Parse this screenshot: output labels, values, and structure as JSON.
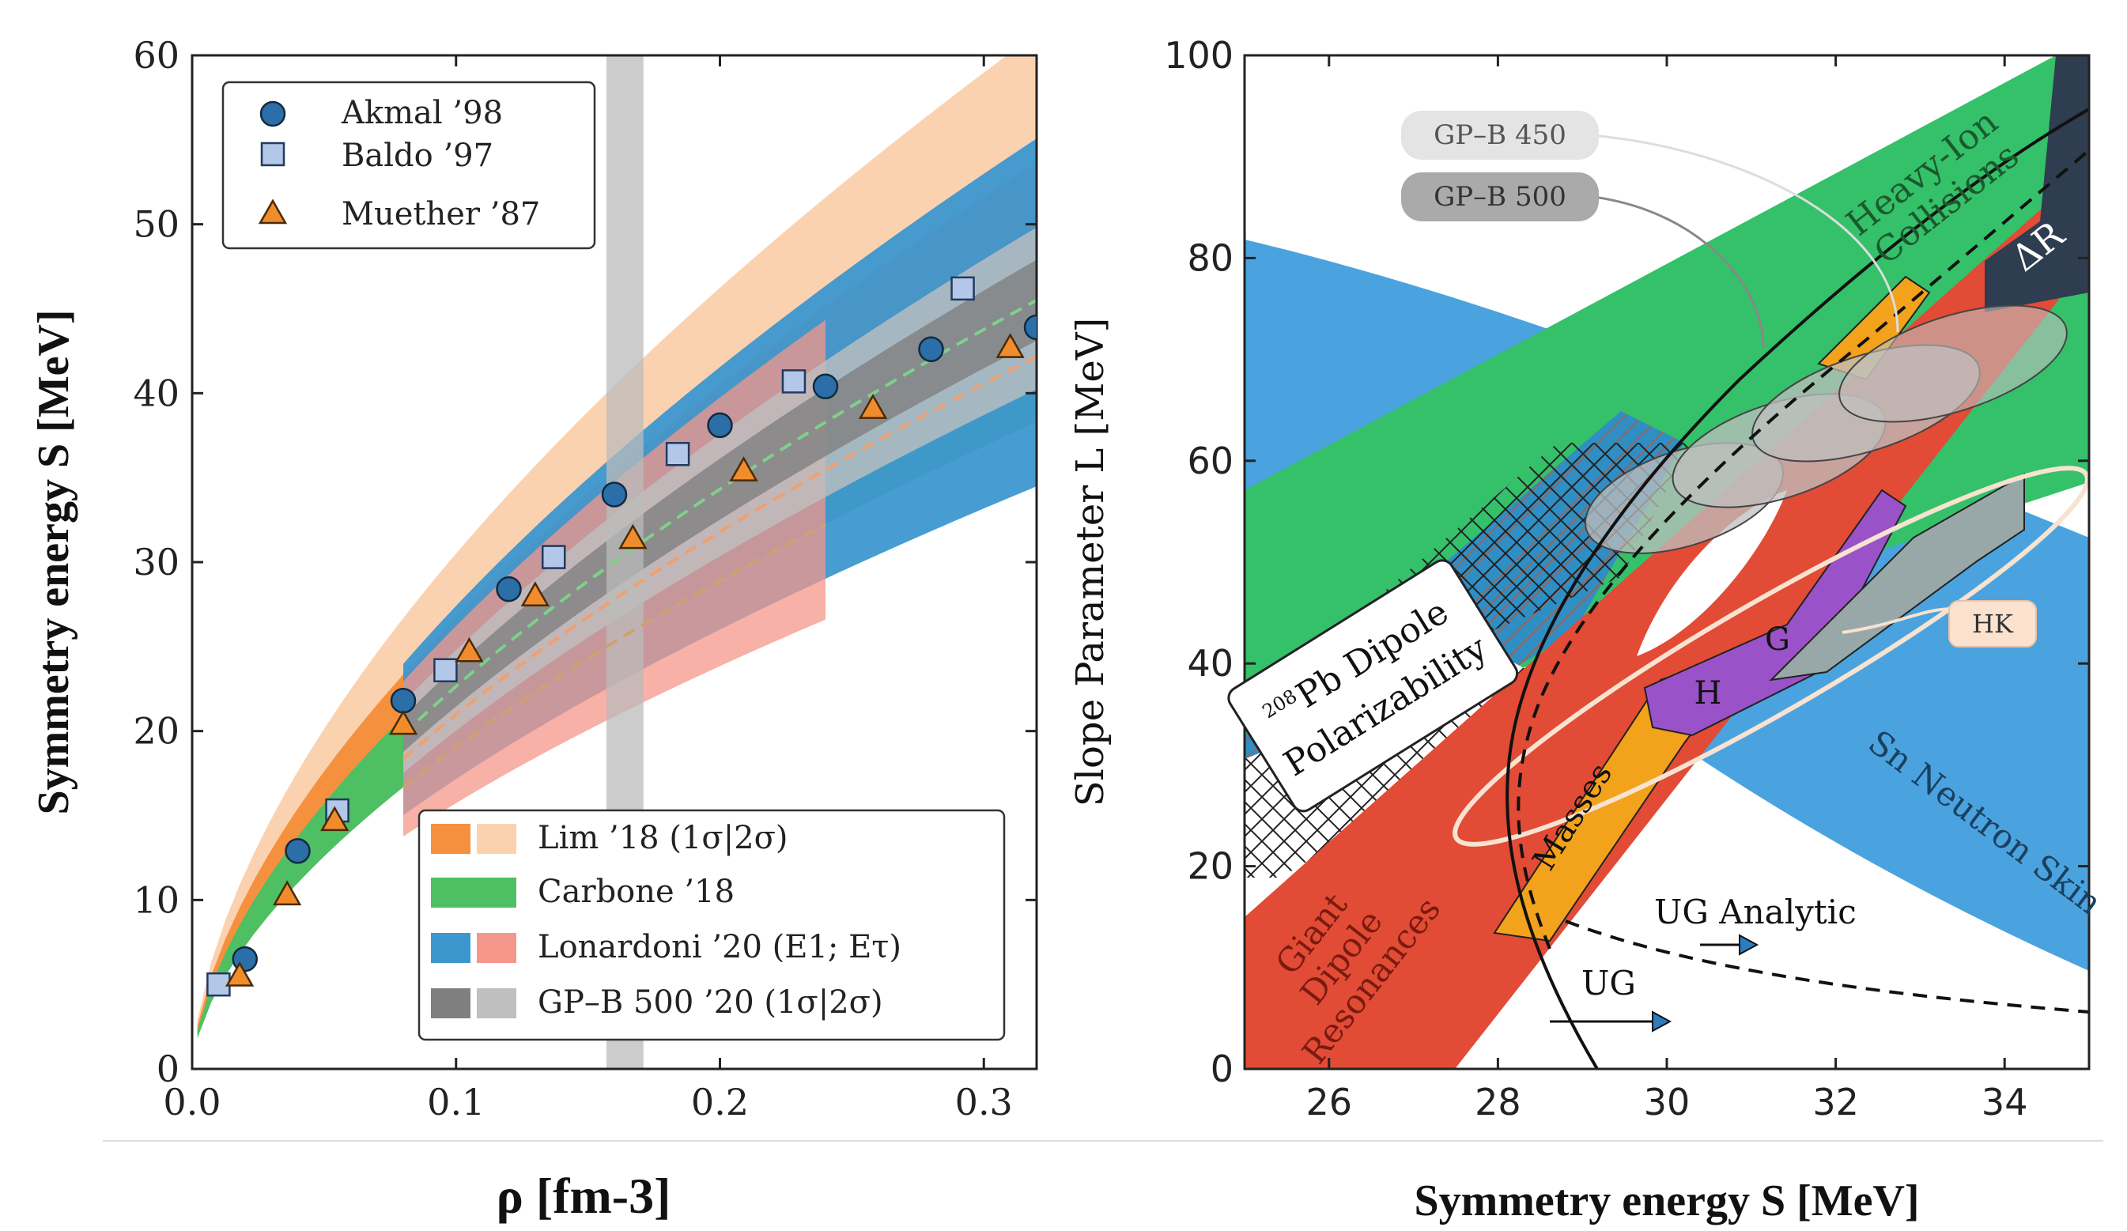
{
  "chart_data": [
    {
      "type": "scatter",
      "xlabel": "ρ [fm-3]",
      "ylabel": "Symmetry energy S [MeV]",
      "xlim": [
        0.0,
        0.32
      ],
      "ylim": [
        0,
        60
      ],
      "xticks": [
        "0.0",
        "0.1",
        "0.2",
        "0.3"
      ],
      "yticks": [
        "0",
        "10",
        "20",
        "30",
        "40",
        "50",
        "60"
      ],
      "legend_top": [
        "Akmal ’98",
        "Baldo ’97",
        "Muether ’87"
      ],
      "legend_bottom": [
        "Lim ’18 (1σ|2σ)",
        "Carbone ’18",
        "Lonardoni ’20 (E1; Eτ)",
        "GP–B 500 ’20 (1σ|2σ)"
      ],
      "saturation_band": [
        0.157,
        0.171
      ],
      "series": [
        {
          "name": "Akmal ’98",
          "marker": "circle",
          "color": "#2b6ea8",
          "x": [
            0.02,
            0.04,
            0.08,
            0.12,
            0.16,
            0.2,
            0.24,
            0.28,
            0.32
          ],
          "y": [
            6.5,
            12.9,
            21.8,
            28.4,
            34.0,
            38.1,
            40.4,
            42.6,
            43.9
          ]
        },
        {
          "name": "Baldo ’97",
          "marker": "square",
          "color": "#b3c8e8",
          "x": [
            0.01,
            0.055,
            0.096,
            0.137,
            0.184,
            0.228,
            0.292
          ],
          "y": [
            5.0,
            15.3,
            23.6,
            30.3,
            36.4,
            40.7,
            46.2
          ]
        },
        {
          "name": "Muether ’87",
          "marker": "triangle",
          "color": "#f08c2c",
          "x": [
            0.018,
            0.036,
            0.054,
            0.08,
            0.105,
            0.13,
            0.167,
            0.209,
            0.258,
            0.31
          ],
          "y": [
            5.5,
            10.3,
            14.7,
            20.4,
            24.7,
            28.0,
            31.4,
            35.4,
            39.1,
            42.7
          ]
        }
      ],
      "colors": {
        "lim_1s": "#f5913e",
        "lim_2s": "#fbd2b0",
        "carbone": "#4fbf63",
        "lonardoni_e1": "#3d97cf",
        "lonardoni_etau": "#f4978a",
        "gpb_1s": "#7f7f7f",
        "gpb_2s": "#bfbfbf"
      }
    },
    {
      "type": "area",
      "xlabel": "Symmetry energy S [MeV]",
      "ylabel": "Slope Parameter L [MeV]",
      "xlim": [
        25,
        35
      ],
      "ylim": [
        0,
        100
      ],
      "xticks": [
        "26",
        "28",
        "30",
        "32",
        "34"
      ],
      "yticks": [
        "0",
        "20",
        "40",
        "60",
        "80",
        "100"
      ],
      "regions": [
        "Heavy-Ion Collisions",
        "ΔR",
        "UG",
        "Sn Neutron Skin",
        "Giant Dipole Resonances",
        "Masses",
        "H",
        "G",
        "208Pb Dipole Polarizability"
      ],
      "labels": {
        "gpb450": "GP–B 450",
        "gpb500": "GP–B 500",
        "heavy_ion_1": "Heavy-Ion",
        "heavy_ion_2": "Collisions",
        "delta_r": "ΔR",
        "pb_1": "208",
        "pb_2": "Pb Dipole",
        "pb_3": "Polarizability",
        "sn_skin": "Sn Neutron Skin",
        "gdr_1": "Giant",
        "gdr_2": "Dipole",
        "gdr_3": "Resonances",
        "masses": "Masses",
        "h": "H",
        "g": "G",
        "hk": "HK",
        "ug_analytic": "UG Analytic",
        "ug": "UG"
      },
      "colors": {
        "heavy_ion": "#35c06a",
        "sn_skin": "#4aa3df",
        "pb_dipole": "#2f8fc4",
        "gdr": "#e24b35",
        "masses": "#f3a21b",
        "h": "#9a52c8",
        "g": "#98a8a8",
        "dark": "#2e3d4f"
      }
    }
  ]
}
